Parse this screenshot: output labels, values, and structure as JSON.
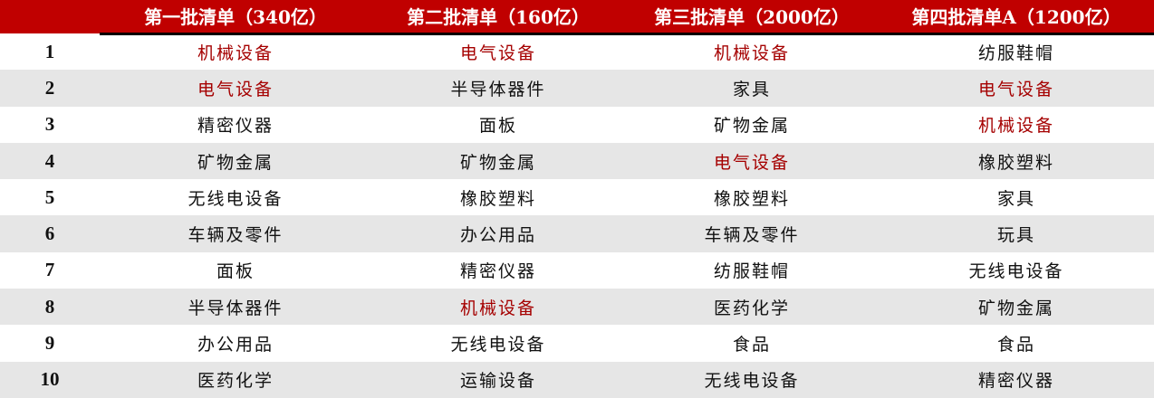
{
  "headers": [
    "",
    "第一批清单（340亿）",
    "第二批清单（160亿）",
    "第三批清单（2000亿）",
    "第四批清单A（1200亿）"
  ],
  "highlight_color": "#a50000",
  "header_color": "#c00000",
  "rows": [
    {
      "rank": "1",
      "cells": [
        {
          "text": "机械设备",
          "hl": true
        },
        {
          "text": "电气设备",
          "hl": true
        },
        {
          "text": "机械设备",
          "hl": true
        },
        {
          "text": "纺服鞋帽",
          "hl": false
        }
      ]
    },
    {
      "rank": "2",
      "cells": [
        {
          "text": "电气设备",
          "hl": true
        },
        {
          "text": "半导体器件",
          "hl": false
        },
        {
          "text": "家具",
          "hl": false
        },
        {
          "text": "电气设备",
          "hl": true
        }
      ]
    },
    {
      "rank": "3",
      "cells": [
        {
          "text": "精密仪器",
          "hl": false
        },
        {
          "text": "面板",
          "hl": false
        },
        {
          "text": "矿物金属",
          "hl": false
        },
        {
          "text": "机械设备",
          "hl": true
        }
      ]
    },
    {
      "rank": "4",
      "cells": [
        {
          "text": "矿物金属",
          "hl": false
        },
        {
          "text": "矿物金属",
          "hl": false
        },
        {
          "text": "电气设备",
          "hl": true
        },
        {
          "text": "橡胶塑料",
          "hl": false
        }
      ]
    },
    {
      "rank": "5",
      "cells": [
        {
          "text": "无线电设备",
          "hl": false
        },
        {
          "text": "橡胶塑料",
          "hl": false
        },
        {
          "text": "橡胶塑料",
          "hl": false
        },
        {
          "text": "家具",
          "hl": false
        }
      ]
    },
    {
      "rank": "6",
      "cells": [
        {
          "text": "车辆及零件",
          "hl": false
        },
        {
          "text": "办公用品",
          "hl": false
        },
        {
          "text": "车辆及零件",
          "hl": false
        },
        {
          "text": "玩具",
          "hl": false
        }
      ]
    },
    {
      "rank": "7",
      "cells": [
        {
          "text": "面板",
          "hl": false
        },
        {
          "text": "精密仪器",
          "hl": false
        },
        {
          "text": "纺服鞋帽",
          "hl": false
        },
        {
          "text": "无线电设备",
          "hl": false
        }
      ]
    },
    {
      "rank": "8",
      "cells": [
        {
          "text": "半导体器件",
          "hl": false
        },
        {
          "text": "机械设备",
          "hl": true
        },
        {
          "text": "医药化学",
          "hl": false
        },
        {
          "text": "矿物金属",
          "hl": false
        }
      ]
    },
    {
      "rank": "9",
      "cells": [
        {
          "text": "办公用品",
          "hl": false
        },
        {
          "text": "无线电设备",
          "hl": false
        },
        {
          "text": "食品",
          "hl": false
        },
        {
          "text": "食品",
          "hl": false
        }
      ]
    },
    {
      "rank": "10",
      "cells": [
        {
          "text": "医药化学",
          "hl": false
        },
        {
          "text": "运输设备",
          "hl": false
        },
        {
          "text": "无线电设备",
          "hl": false
        },
        {
          "text": "精密仪器",
          "hl": false
        }
      ]
    }
  ]
}
